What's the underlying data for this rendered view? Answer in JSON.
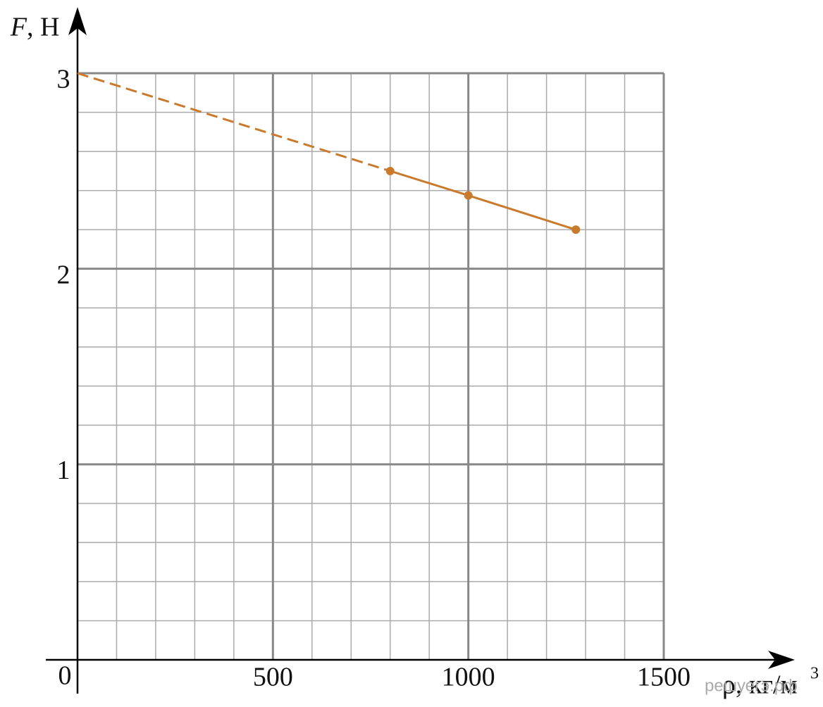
{
  "chart_data": {
    "type": "line",
    "ylabel": {
      "symbol": "F",
      "unit": ", Н"
    },
    "xlabel": {
      "text": "ρ, кг/м",
      "exponent": "3"
    },
    "origin_label": "0",
    "watermark": "решуегэ.рф",
    "xlim": [
      0,
      1500
    ],
    "xticks": [
      500,
      1000,
      1500
    ],
    "ylim": [
      0,
      3
    ],
    "yticks": [
      1,
      2,
      3
    ],
    "x_minor_step": 100,
    "y_minor_step": 0.2,
    "grid": true,
    "series": [
      {
        "color": "#c97a2c",
        "dashed": true,
        "markers": false,
        "x": [
          0,
          800
        ],
        "values": [
          3,
          2.5
        ]
      },
      {
        "color": "#c97a2c",
        "dashed": false,
        "markers": true,
        "x": [
          800,
          1000,
          1275
        ],
        "values": [
          2.5,
          2.375,
          2.2
        ]
      }
    ]
  }
}
